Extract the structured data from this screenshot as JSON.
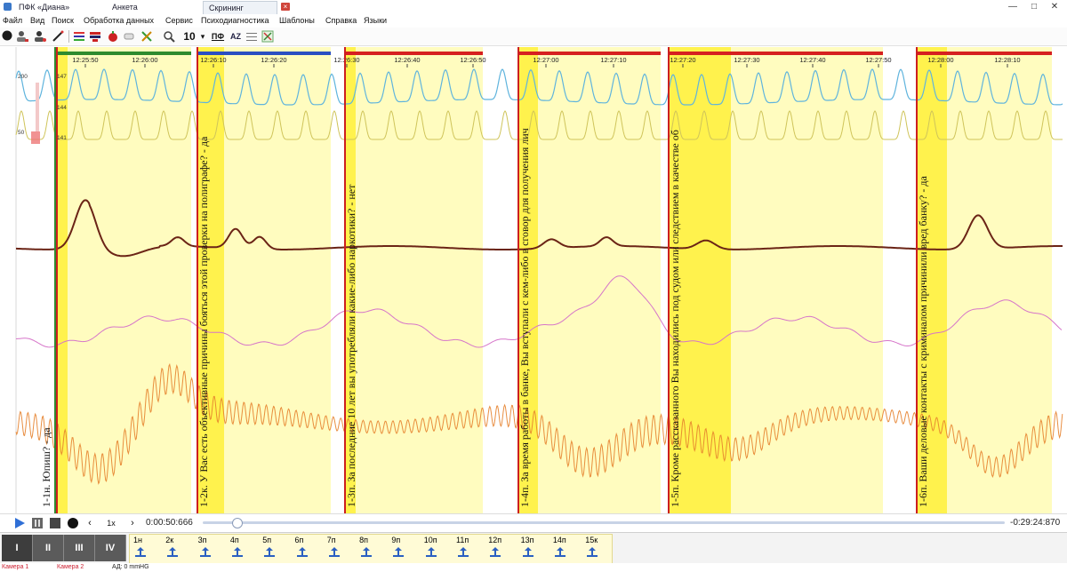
{
  "window": {
    "tabs": [
      {
        "label": "ПФК «Диана»",
        "active": false
      },
      {
        "label": "Анкета",
        "active": false
      },
      {
        "label": "Скрининг",
        "active": true
      }
    ],
    "min_label": "—",
    "max_label": "□",
    "close_label": "✕"
  },
  "menu": [
    "Файл",
    "Вид",
    "Поиск",
    "Обработка данных",
    "Сервис",
    "Психодиагностика",
    "Шаблоны",
    "Справка",
    "Языки"
  ],
  "toolbar": {
    "zoom_value": "10",
    "pf_label": "ПФ",
    "az_label": "AZ",
    "icons": [
      "record-icon",
      "user-icon",
      "user-settings-icon",
      "pen-icon",
      "channels-icon",
      "filter-icon",
      "tomato-icon",
      "eraser-icon",
      "tools-icon",
      "search-icon",
      "dropdown-icon",
      "text-edit-icon",
      "ruler-icon",
      "compare-icon"
    ]
  },
  "chart": {
    "time_ticks": [
      "12:25:50",
      "12:26:00",
      "12:26:10",
      "12:26:20",
      "12:26:30",
      "12:26:40",
      "12:26:50",
      "12:27:00",
      "12:27:10",
      "12:27:20",
      "12:27:30",
      "12:27:40",
      "12:27:50",
      "12:28:00",
      "12:28:10"
    ],
    "scale_labels": [
      "200",
      "147",
      "144",
      "141",
      "50"
    ],
    "segments": [
      {
        "bar_color": "#2e8b2e",
        "question": "1-1н. Юпиш? - да"
      },
      {
        "bar_color": "#2a4fc2",
        "question": "1-2к. У Вас есть объективные причины бояться этой проверки на полиграфе? - да"
      },
      {
        "bar_color": "#d62020",
        "question": "1-3п. За последние 10 лет вы употребляли какие-либо наркотики? - нет"
      },
      {
        "bar_color": "#d62020",
        "question": "1-4п. За время работы в банке, Вы вступали с кем-либо в сговор для получения лич"
      },
      {
        "bar_color": "#d62020",
        "question": "1-5п. Кроме рассказанного Вы находились под судом или следствием в качестве об"
      },
      {
        "bar_color": "#d62020",
        "question": "1-6п. Ваши деловые контакты с криминалом причинили вред банку? - да"
      }
    ]
  },
  "playback": {
    "speed": "1x",
    "elapsed": "0:00:50:666",
    "remaining": "-0:29:24:870",
    "progress": 0.025
  },
  "phases": [
    "I",
    "II",
    "III",
    "IV"
  ],
  "questions": [
    "1н",
    "2к",
    "3п",
    "4п",
    "5п",
    "6п",
    "7п",
    "8п",
    "9п",
    "10п",
    "11п",
    "12п",
    "13п",
    "14п",
    "15к"
  ],
  "status": {
    "camera1": "Камера 1",
    "camera2": "Камера 2",
    "bp": "АД: 0 mmHG"
  },
  "colors": {
    "zone_yellow": "#fffcbf",
    "zone_bright": "#fff24d",
    "pulse_blue": "#5fb4dd",
    "pulse_yellow": "#cfc45a",
    "gsr": "#6b2416",
    "breath_pink": "#d675c9",
    "breath_orange": "#e5822e",
    "marker_red": "#cc1f1f",
    "marker_green": "#2e8b2e"
  }
}
